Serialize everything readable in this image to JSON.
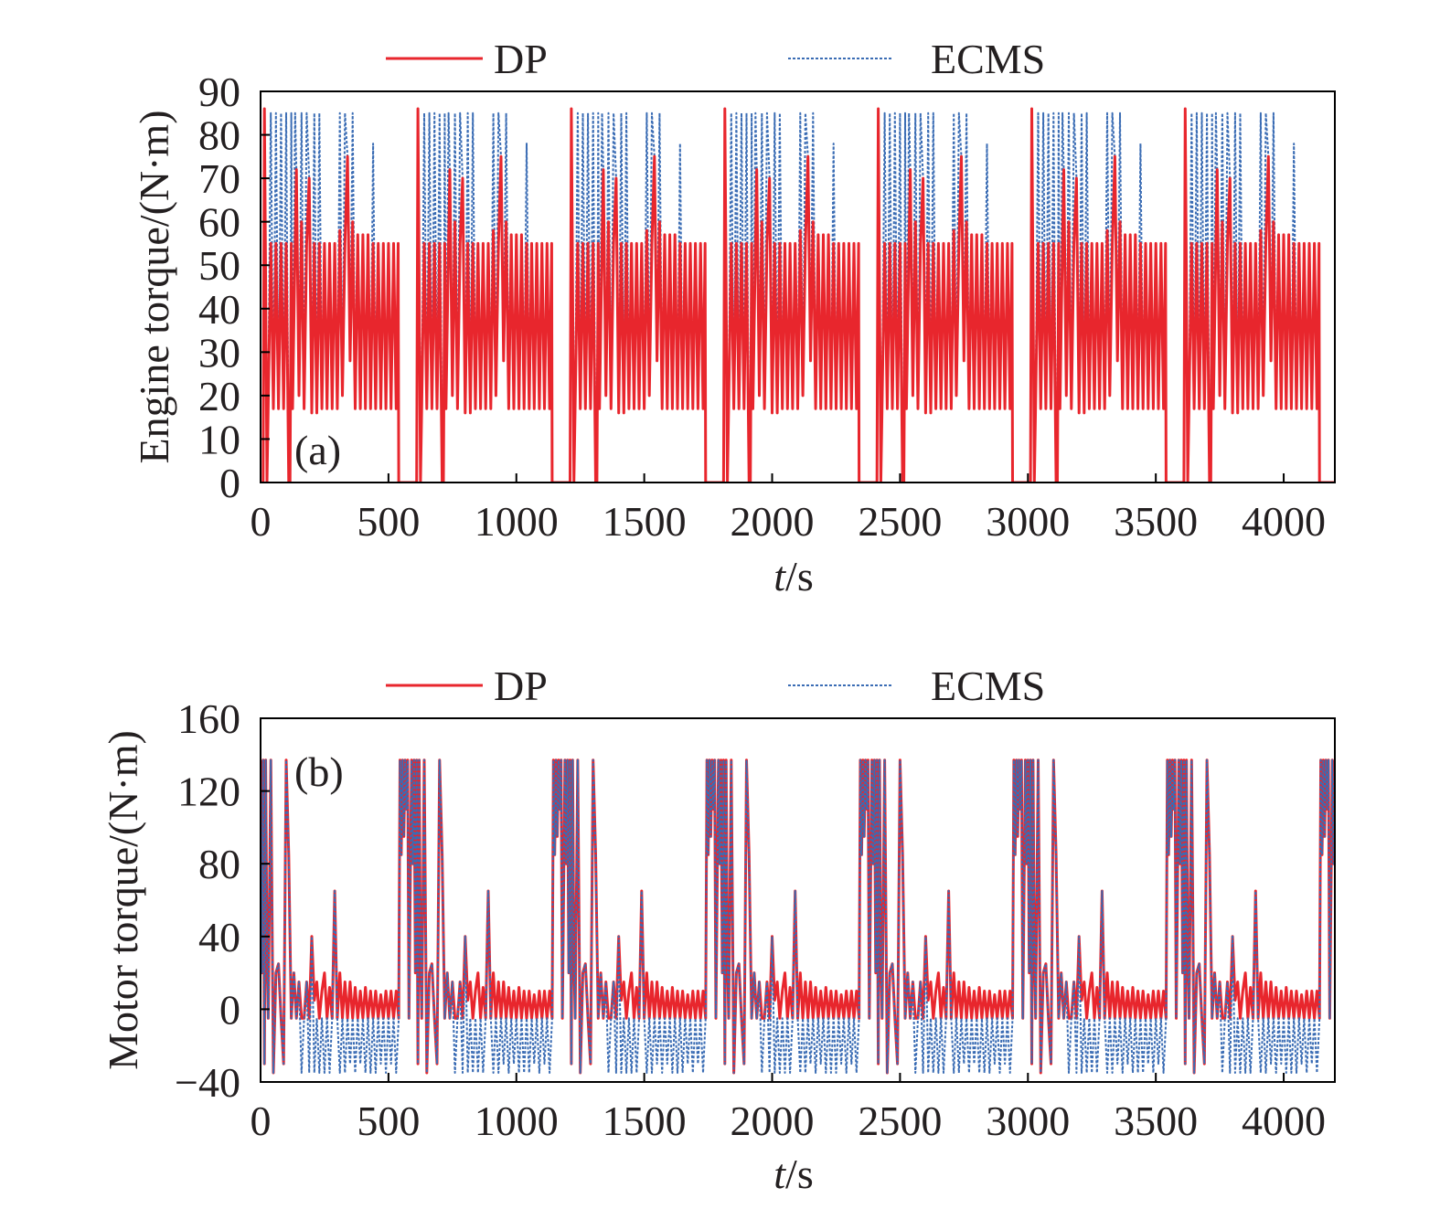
{
  "chart_data": [
    {
      "type": "line",
      "panel_label": "(a)",
      "xlabel": "t/s",
      "ylabel": "Engine torque/(N·m)",
      "xlim": [
        0,
        4200
      ],
      "ylim": [
        0,
        90
      ],
      "xticks": [
        "0",
        "500",
        "1000",
        "1500",
        "2000",
        "2500",
        "3000",
        "3500",
        "4000"
      ],
      "yticks": [
        "0",
        "10",
        "20",
        "30",
        "40",
        "50",
        "60",
        "70",
        "80",
        "90"
      ],
      "legend_position": "top",
      "grid": false,
      "series": [
        {
          "name": "DP",
          "color": "#e8262d",
          "style": "solid",
          "cycle_length_s": 600,
          "cycle_points": [
            [
              0,
              0
            ],
            [
              10,
              0
            ],
            [
              15,
              86
            ],
            [
              20,
              45
            ],
            [
              25,
              0
            ],
            [
              30,
              18
            ],
            [
              40,
              55
            ],
            [
              50,
              17
            ],
            [
              60,
              55
            ],
            [
              70,
              17
            ],
            [
              80,
              55
            ],
            [
              90,
              17
            ],
            [
              100,
              55
            ],
            [
              110,
              0
            ],
            [
              115,
              0
            ],
            [
              120,
              55
            ],
            [
              125,
              17
            ],
            [
              135,
              55
            ],
            [
              140,
              72
            ],
            [
              150,
              20
            ],
            [
              160,
              60
            ],
            [
              170,
              17
            ],
            [
              180,
              55
            ],
            [
              190,
              70
            ],
            [
              200,
              16
            ],
            [
              210,
              55
            ],
            [
              220,
              16
            ],
            [
              230,
              55
            ],
            [
              240,
              17
            ],
            [
              250,
              55
            ],
            [
              260,
              17
            ],
            [
              270,
              55
            ],
            [
              280,
              17
            ],
            [
              290,
              55
            ],
            [
              300,
              17
            ],
            [
              310,
              58
            ],
            [
              320,
              20
            ],
            [
              330,
              55
            ],
            [
              340,
              75
            ],
            [
              350,
              28
            ],
            [
              360,
              60
            ],
            [
              370,
              17
            ],
            [
              380,
              57
            ],
            [
              390,
              17
            ],
            [
              400,
              57
            ],
            [
              410,
              17
            ],
            [
              420,
              57
            ],
            [
              430,
              17
            ],
            [
              440,
              55
            ],
            [
              450,
              17
            ],
            [
              460,
              55
            ],
            [
              470,
              17
            ],
            [
              480,
              55
            ],
            [
              490,
              17
            ],
            [
              500,
              55
            ],
            [
              510,
              17
            ],
            [
              520,
              55
            ],
            [
              530,
              17
            ],
            [
              538,
              55
            ],
            [
              540,
              0
            ],
            [
              600,
              0
            ]
          ]
        },
        {
          "name": "ECMS",
          "color": "#3a6cb4",
          "style": "dotted",
          "cycle_length_s": 600,
          "cycle_points": [
            [
              0,
              0
            ],
            [
              10,
              0
            ],
            [
              15,
              86
            ],
            [
              20,
              45
            ],
            [
              25,
              0
            ],
            [
              30,
              18
            ],
            [
              40,
              85
            ],
            [
              50,
              17
            ],
            [
              60,
              85
            ],
            [
              70,
              17
            ],
            [
              80,
              85
            ],
            [
              90,
              17
            ],
            [
              100,
              85
            ],
            [
              110,
              0
            ],
            [
              115,
              0
            ],
            [
              120,
              85
            ],
            [
              125,
              17
            ],
            [
              135,
              85
            ],
            [
              140,
              72
            ],
            [
              150,
              20
            ],
            [
              160,
              85
            ],
            [
              170,
              17
            ],
            [
              180,
              85
            ],
            [
              190,
              70
            ],
            [
              200,
              16
            ],
            [
              210,
              85
            ],
            [
              220,
              16
            ],
            [
              230,
              85
            ],
            [
              240,
              17
            ],
            [
              250,
              55
            ],
            [
              260,
              17
            ],
            [
              270,
              55
            ],
            [
              280,
              17
            ],
            [
              290,
              55
            ],
            [
              300,
              17
            ],
            [
              310,
              85
            ],
            [
              320,
              20
            ],
            [
              330,
              85
            ],
            [
              340,
              75
            ],
            [
              350,
              28
            ],
            [
              360,
              85
            ],
            [
              370,
              17
            ],
            [
              380,
              57
            ],
            [
              390,
              17
            ],
            [
              400,
              57
            ],
            [
              410,
              17
            ],
            [
              420,
              57
            ],
            [
              430,
              17
            ],
            [
              440,
              78
            ],
            [
              450,
              17
            ],
            [
              460,
              55
            ],
            [
              470,
              17
            ],
            [
              480,
              55
            ],
            [
              490,
              17
            ],
            [
              500,
              55
            ],
            [
              510,
              17
            ],
            [
              520,
              55
            ],
            [
              530,
              17
            ],
            [
              538,
              55
            ],
            [
              540,
              0
            ],
            [
              600,
              0
            ]
          ]
        }
      ]
    },
    {
      "type": "line",
      "panel_label": "(b)",
      "xlabel": "t/s",
      "ylabel": "Motor torque/(N·m)",
      "xlim": [
        0,
        4200
      ],
      "ylim": [
        -40,
        160
      ],
      "xticks": [
        "0",
        "500",
        "1000",
        "1500",
        "2000",
        "2500",
        "3000",
        "3500",
        "4000"
      ],
      "yticks": [
        "−40",
        "0",
        "40",
        "80",
        "120",
        "160"
      ],
      "legend_position": "top",
      "grid": false,
      "series": [
        {
          "name": "DP",
          "color": "#e8262d",
          "style": "solid",
          "cycle_length_s": 600,
          "cycle_points": [
            [
              0,
              137
            ],
            [
              5,
              20
            ],
            [
              10,
              137
            ],
            [
              15,
              -30
            ],
            [
              20,
              137
            ],
            [
              25,
              30
            ],
            [
              30,
              -5
            ],
            [
              40,
              137
            ],
            [
              50,
              -35
            ],
            [
              60,
              20
            ],
            [
              70,
              25
            ],
            [
              80,
              -5
            ],
            [
              90,
              -30
            ],
            [
              100,
              137
            ],
            [
              110,
              85
            ],
            [
              120,
              -5
            ],
            [
              130,
              20
            ],
            [
              140,
              -5
            ],
            [
              150,
              15
            ],
            [
              160,
              -5
            ],
            [
              170,
              -5
            ],
            [
              180,
              15
            ],
            [
              190,
              -5
            ],
            [
              200,
              40
            ],
            [
              210,
              5
            ],
            [
              220,
              15
            ],
            [
              230,
              -5
            ],
            [
              240,
              10
            ],
            [
              250,
              20
            ],
            [
              260,
              -5
            ],
            [
              270,
              12
            ],
            [
              280,
              -5
            ],
            [
              290,
              65
            ],
            [
              300,
              -5
            ],
            [
              310,
              20
            ],
            [
              320,
              -5
            ],
            [
              330,
              15
            ],
            [
              340,
              -5
            ],
            [
              350,
              15
            ],
            [
              360,
              -5
            ],
            [
              370,
              12
            ],
            [
              380,
              -5
            ],
            [
              390,
              10
            ],
            [
              400,
              -5
            ],
            [
              410,
              12
            ],
            [
              420,
              -5
            ],
            [
              430,
              10
            ],
            [
              440,
              -5
            ],
            [
              450,
              10
            ],
            [
              460,
              -5
            ],
            [
              470,
              8
            ],
            [
              480,
              -5
            ],
            [
              490,
              10
            ],
            [
              500,
              -5
            ],
            [
              510,
              10
            ],
            [
              520,
              -5
            ],
            [
              530,
              10
            ],
            [
              540,
              -5
            ],
            [
              545,
              137
            ],
            [
              550,
              85
            ],
            [
              555,
              137
            ],
            [
              560,
              95
            ],
            [
              565,
              137
            ],
            [
              570,
              110
            ],
            [
              575,
              137
            ],
            [
              580,
              -5
            ],
            [
              590,
              137
            ],
            [
              595,
              80
            ],
            [
              600,
              137
            ]
          ]
        },
        {
          "name": "ECMS",
          "color": "#3a6cb4",
          "style": "dotted",
          "cycle_length_s": 600,
          "cycle_points": [
            [
              0,
              137
            ],
            [
              5,
              20
            ],
            [
              10,
              137
            ],
            [
              15,
              -30
            ],
            [
              20,
              137
            ],
            [
              25,
              30
            ],
            [
              30,
              -5
            ],
            [
              40,
              137
            ],
            [
              50,
              -35
            ],
            [
              60,
              20
            ],
            [
              70,
              25
            ],
            [
              80,
              -5
            ],
            [
              90,
              -30
            ],
            [
              100,
              137
            ],
            [
              110,
              85
            ],
            [
              120,
              -5
            ],
            [
              130,
              20
            ],
            [
              140,
              -5
            ],
            [
              150,
              15
            ],
            [
              160,
              -35
            ],
            [
              170,
              -5
            ],
            [
              180,
              15
            ],
            [
              190,
              -35
            ],
            [
              200,
              40
            ],
            [
              210,
              -35
            ],
            [
              220,
              -5
            ],
            [
              230,
              -35
            ],
            [
              240,
              -5
            ],
            [
              250,
              -35
            ],
            [
              260,
              -5
            ],
            [
              270,
              -35
            ],
            [
              280,
              -5
            ],
            [
              290,
              65
            ],
            [
              300,
              -5
            ],
            [
              310,
              -35
            ],
            [
              320,
              -5
            ],
            [
              330,
              -35
            ],
            [
              340,
              -5
            ],
            [
              350,
              -30
            ],
            [
              360,
              -5
            ],
            [
              370,
              -35
            ],
            [
              380,
              -5
            ],
            [
              390,
              -30
            ],
            [
              400,
              -5
            ],
            [
              410,
              -35
            ],
            [
              420,
              -5
            ],
            [
              430,
              -35
            ],
            [
              440,
              -5
            ],
            [
              450,
              -35
            ],
            [
              460,
              -5
            ],
            [
              470,
              -30
            ],
            [
              480,
              -5
            ],
            [
              490,
              -35
            ],
            [
              500,
              -5
            ],
            [
              510,
              -30
            ],
            [
              520,
              -5
            ],
            [
              530,
              -35
            ],
            [
              540,
              -5
            ],
            [
              545,
              137
            ],
            [
              550,
              85
            ],
            [
              555,
              137
            ],
            [
              560,
              95
            ],
            [
              565,
              137
            ],
            [
              570,
              110
            ],
            [
              575,
              137
            ],
            [
              580,
              -5
            ],
            [
              590,
              137
            ],
            [
              595,
              80
            ],
            [
              600,
              137
            ]
          ]
        }
      ]
    }
  ]
}
